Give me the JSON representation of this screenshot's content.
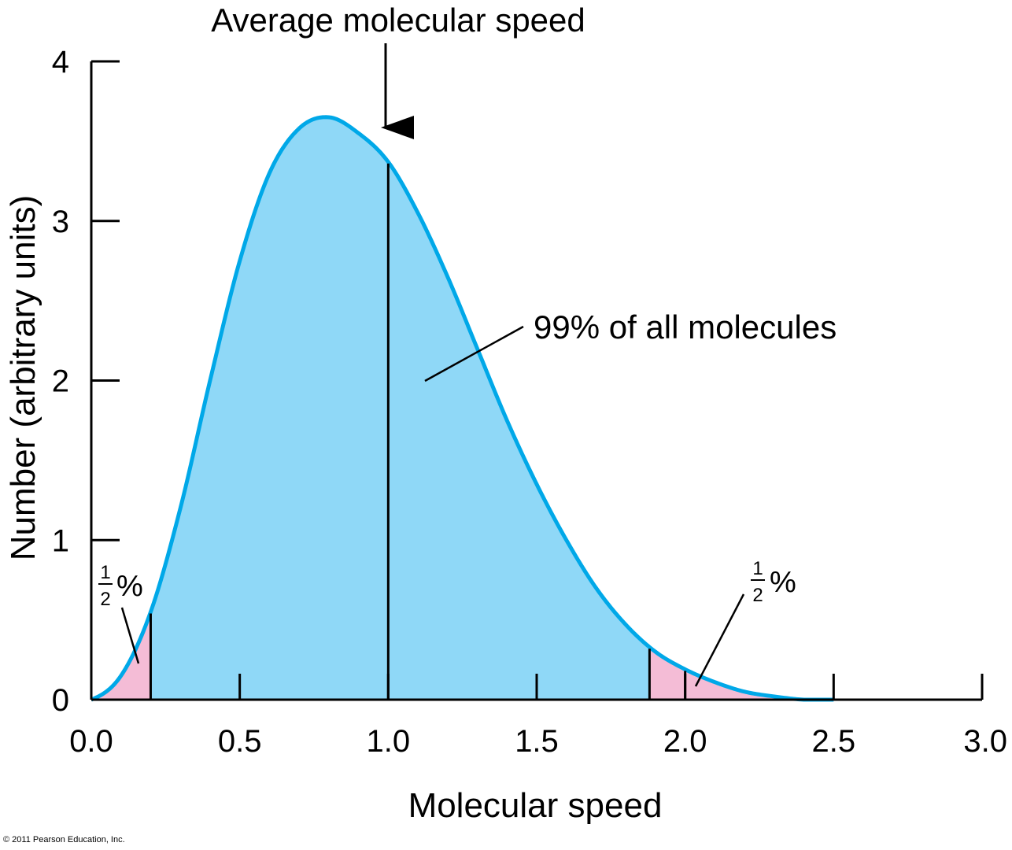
{
  "chart_data": {
    "type": "area",
    "title": "",
    "xlabel": "Molecular speed",
    "ylabel": "Number (arbitrary units)",
    "xlim": [
      0.0,
      3.0
    ],
    "ylim": [
      0,
      4
    ],
    "x_ticks": [
      "0.0",
      "0.5",
      "1.0",
      "1.5",
      "2.0",
      "2.5",
      "3.0"
    ],
    "y_ticks": [
      "0",
      "1",
      "2",
      "3",
      "4"
    ],
    "grid": false,
    "curve": {
      "x": [
        0.0,
        0.1,
        0.2,
        0.3,
        0.4,
        0.5,
        0.6,
        0.7,
        0.8,
        0.9,
        1.0,
        1.1,
        1.2,
        1.3,
        1.4,
        1.5,
        1.6,
        1.7,
        1.8,
        1.9,
        2.0,
        2.1,
        2.2,
        2.3,
        2.4,
        2.5
      ],
      "y": [
        0.0,
        0.15,
        0.55,
        1.2,
        2.0,
        2.75,
        3.3,
        3.58,
        3.65,
        3.55,
        3.37,
        3.05,
        2.65,
        2.2,
        1.75,
        1.35,
        1.0,
        0.7,
        0.47,
        0.3,
        0.19,
        0.11,
        0.05,
        0.02,
        0.0,
        0.0
      ]
    },
    "regions": [
      {
        "name": "lower_tail",
        "x_range": [
          0.0,
          0.2
        ],
        "color": "#f4bcd6"
      },
      {
        "name": "middle",
        "x_range": [
          0.2,
          1.88
        ],
        "color": "#8fd8f7"
      },
      {
        "name": "upper_tail",
        "x_range": [
          1.88,
          2.5
        ],
        "color": "#f4bcd6"
      }
    ],
    "vertical_markers": [
      0.2,
      1.0,
      1.88,
      2.0
    ],
    "annotations": {
      "average": {
        "text": "Average molecular speed",
        "x": 1.0
      },
      "middle": {
        "text": "99% of all molecules"
      },
      "lower_tail": {
        "numerator": "1",
        "denominator": "2",
        "suffix": "%"
      },
      "upper_tail": {
        "numerator": "1",
        "denominator": "2",
        "suffix": "%"
      }
    },
    "colors": {
      "curve": "#00a8e8",
      "fill_main": "#8fd8f7",
      "fill_tail": "#f4bcd6",
      "axis": "#000000"
    }
  },
  "footer": {
    "copyright": "© 2011 Pearson Education, Inc."
  }
}
